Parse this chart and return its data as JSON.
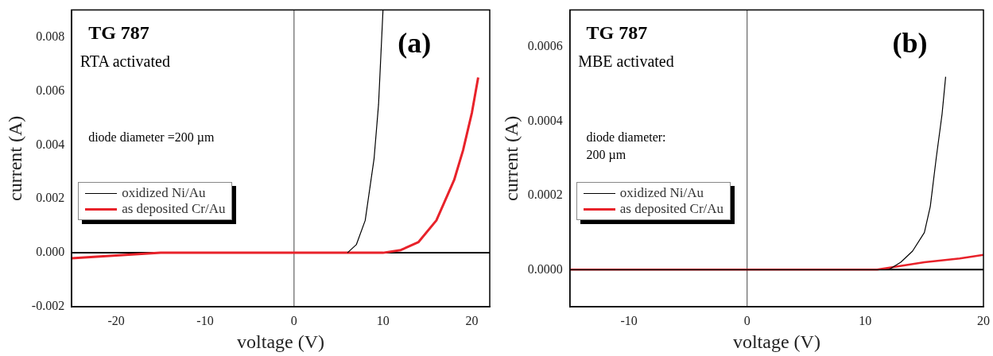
{
  "chart_data": [
    {
      "type": "line",
      "xlabel": "voltage (V)",
      "ylabel": "current (A)",
      "xlim": [
        -25,
        22
      ],
      "ylim": [
        -0.002,
        0.009
      ],
      "xticks": [
        -20,
        -10,
        0,
        10,
        20
      ],
      "yticks": [
        -0.002,
        {
          "value": 0,
          "label": "0.000"
        },
        0.002,
        0.004,
        0.006,
        0.008
      ],
      "grid": false,
      "marker": "none",
      "line_style": "solid",
      "legend": "left",
      "annotations": [
        "TG 787",
        "RTA activated",
        "(a)",
        "diode diameter =200 µm"
      ],
      "ref_lines": [
        {
          "axis": "x",
          "value": 0,
          "color": "#444444"
        },
        {
          "axis": "y",
          "value": 0,
          "color": "#000000"
        }
      ],
      "series": [
        {
          "name": "oxidized Ni/Au",
          "color": "#000000",
          "x": [
            6,
            7,
            8,
            9,
            9.5,
            10
          ],
          "values": [
            0,
            0.0003,
            0.0012,
            0.0035,
            0.0055,
            0.009
          ]
        },
        {
          "name": "as deposited Cr/Au",
          "color": "#e8222a",
          "x": [
            -25,
            -20,
            -15,
            0,
            10,
            12,
            14,
            16,
            18,
            19,
            20,
            20.7
          ],
          "values": [
            -0.0002,
            -0.0001,
            0,
            0,
            0,
            0.0001,
            0.0004,
            0.0012,
            0.0027,
            0.0038,
            0.0052,
            0.0065
          ]
        }
      ]
    },
    {
      "type": "line",
      "xlabel": "voltage (V)",
      "ylabel": "current (A)",
      "xlim": [
        -15,
        20
      ],
      "ylim": [
        -0.0001,
        0.0007
      ],
      "xticks": [
        -10,
        0,
        10,
        20
      ],
      "yticks": [
        {
          "value": 0,
          "label": "0.0000"
        },
        0.0002,
        0.0004,
        0.0006
      ],
      "grid": false,
      "marker": "none",
      "line_style": "solid",
      "legend": "left",
      "annotations": [
        "TG 787",
        "MBE activated",
        "(b)",
        "diode diameter:\n200 µm"
      ],
      "ref_lines": [
        {
          "axis": "x",
          "value": 0,
          "color": "#444444"
        },
        {
          "axis": "y",
          "value": 0,
          "color": "#000000"
        }
      ],
      "series": [
        {
          "name": "oxidized Ni/Au",
          "color": "#000000",
          "x": [
            -15,
            0,
            12,
            13,
            14,
            15,
            15.5,
            16,
            16.5,
            16.8
          ],
          "values": [
            0,
            0,
            0,
            2e-05,
            5e-05,
            0.0001,
            0.00017,
            0.0003,
            0.00042,
            0.00052
          ]
        },
        {
          "name": "as deposited Cr/Au",
          "color": "#e8222a",
          "x": [
            -15,
            11,
            15,
            18,
            20
          ],
          "values": [
            0,
            0,
            2e-05,
            3e-05,
            4e-05
          ]
        }
      ]
    }
  ]
}
